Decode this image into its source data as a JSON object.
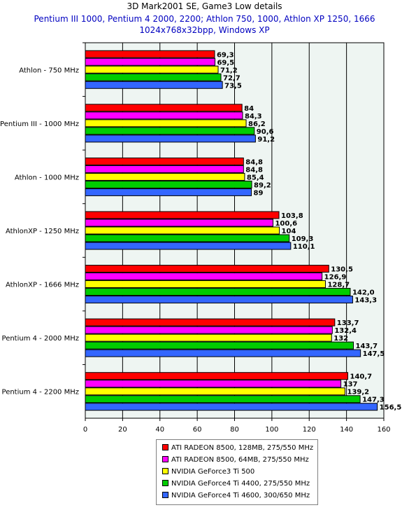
{
  "title": "3D Mark2001 SE, Game3 Low details",
  "subtitle_line1": "Pentium III 1000, Pentium 4 2000, 2200; Athlon 750, 1000, Athlon XP 1250, 1666",
  "subtitle_line2": "1024x768x32bpp, Windows XP",
  "chart_data": {
    "type": "bar",
    "orientation": "horizontal",
    "categories": [
      "Athlon - 750 MHz",
      "Pentium III - 1000 MHz",
      "Athlon - 1000 MHz",
      "AthlonXP - 1250 MHz",
      "AthlonXP - 1666 MHz",
      "Pentium 4 - 2000 MHz",
      "Pentium 4 - 2200 MHz"
    ],
    "series": [
      {
        "name": "ATI RADEON 8500, 128MB, 275/550 MHz",
        "color": "#ff0000",
        "values": [
          69.3,
          84,
          84.8,
          103.8,
          130.5,
          133.7,
          140.7
        ],
        "labels": [
          "69,3",
          "84",
          "84,8",
          "103,8",
          "130,5",
          "133,7",
          "140,7"
        ]
      },
      {
        "name": "ATI RADEON 8500, 64MB, 275/550 MHz",
        "color": "#ff00ff",
        "values": [
          69.5,
          84.3,
          84.8,
          100.6,
          126.9,
          132.4,
          137
        ],
        "labels": [
          "69,5",
          "84,3",
          "84,8",
          "100,6",
          "126,9",
          "132,4",
          "137"
        ]
      },
      {
        "name": "NVIDIA GeForce3 Ti 500",
        "color": "#ffff00",
        "values": [
          71.2,
          86.2,
          85.4,
          104,
          128.7,
          132,
          139.2
        ],
        "labels": [
          "71,2",
          "86,2",
          "85,4",
          "104",
          "128,7",
          "132",
          "139,2"
        ]
      },
      {
        "name": "NVIDIA GeForce4 Ti 4400, 275/550 MHz",
        "color": "#00cc00",
        "values": [
          72.7,
          90.6,
          89.2,
          109.3,
          142.0,
          143.7,
          147.3
        ],
        "labels": [
          "72,7",
          "90,6",
          "89,2",
          "109,3",
          "142,0",
          "143,7",
          "147,3"
        ]
      },
      {
        "name": "NVIDIA GeForce4 Ti 4600, 300/650 MHz",
        "color": "#3366ff",
        "values": [
          73.5,
          91.2,
          89,
          110.1,
          143.3,
          147.5,
          156.5
        ],
        "labels": [
          "73,5",
          "91,2",
          "89",
          "110,1",
          "143,3",
          "147,5",
          "156,5"
        ]
      }
    ],
    "xlim": [
      0,
      160
    ],
    "xticks": [
      0,
      20,
      40,
      60,
      80,
      100,
      120,
      140,
      160
    ],
    "grid": true,
    "legend_position": "bottom"
  }
}
